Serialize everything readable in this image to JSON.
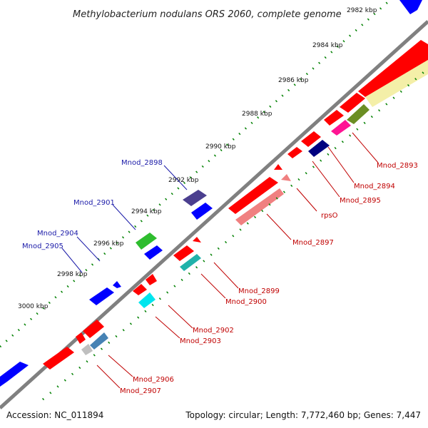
{
  "title": "Methylobacterium nodulans ORS 2060, complete genome",
  "ticks": [
    "2982 kbp",
    "2984 kbp",
    "2986 kbp",
    "2988 kbp",
    "2990 kbp",
    "2992 kbp",
    "2994 kbp",
    "2996 kbp",
    "2998 kbp",
    "3000 kbp"
  ],
  "labels_forward": [
    "Mnod_2898",
    "Mnod_2901",
    "Mnod_2904",
    "Mnod_2905"
  ],
  "labels_reverse": [
    "Mnod_2893",
    "Mnod_2894",
    "Mnod_2895",
    "rpsO",
    "Mnod_2897",
    "Mnod_2899",
    "Mnod_2900",
    "Mnod_2902",
    "Mnod_2903",
    "Mnod_2906",
    "Mnod_2907"
  ],
  "footer": {
    "accession": "Accession: NC_011894",
    "summary": "Topology: circular; Length: 7,772,460 bp; Genes: 7,447"
  },
  "colors": {
    "backbone": "#808080",
    "cds_red": "#ff0000",
    "cds_blue": "#0000ff",
    "dotted_green": "#008000",
    "label_blue": "#1a1aa8",
    "label_red": "#c00000"
  }
}
